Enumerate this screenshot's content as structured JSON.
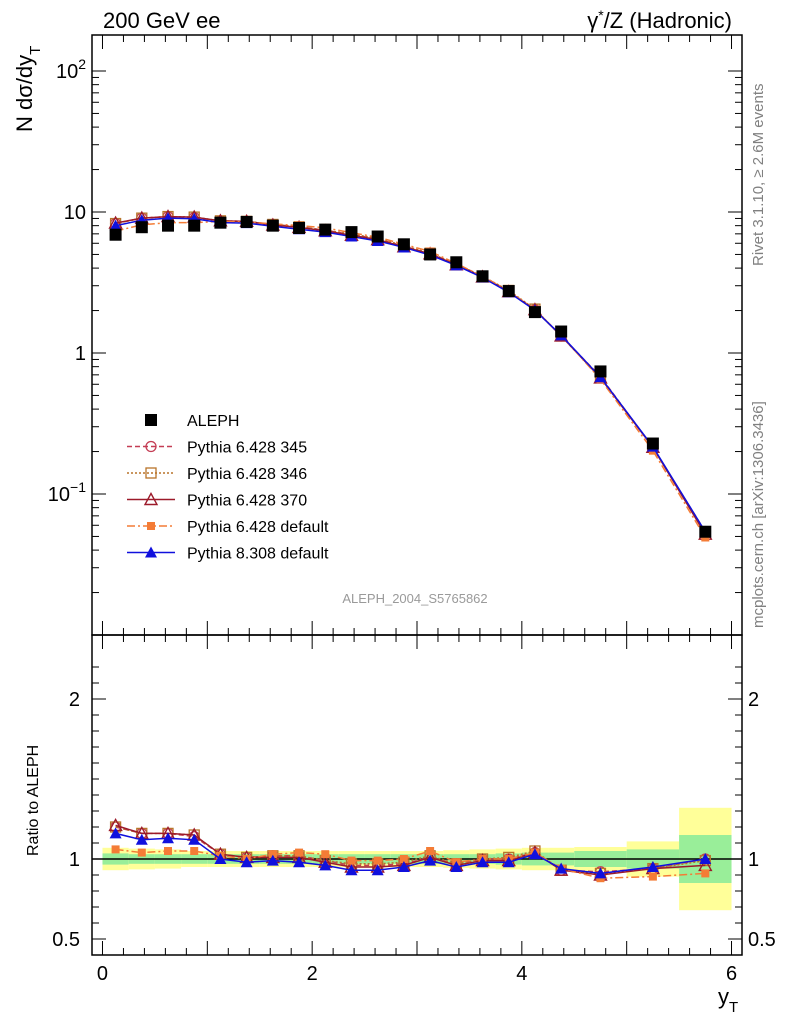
{
  "header": {
    "left": "200 GeV ee",
    "right_prefix": "γ",
    "right_star": "*",
    "right_suffix": "/Z (Hadronic)"
  },
  "side_labels": {
    "top": "Rivet 3.1.10, ≥ 2.6M events",
    "bottom": "mcplots.cern.ch [arXiv:1306.3436]"
  },
  "watermark": "ALEPH_2004_S5765862",
  "axes": {
    "main_ylabel": {
      "main": "N dσ/dy",
      "sub": "T"
    },
    "ratio_ylabel": "Ratio to ALEPH",
    "xlabel": {
      "main": "y",
      "sub": "T"
    },
    "main_yticks": [
      {
        "v": 0.1,
        "base": "10",
        "sup": "−1"
      },
      {
        "v": 1,
        "base": "1",
        "sup": ""
      },
      {
        "v": 10,
        "base": "10",
        "sup": ""
      },
      {
        "v": 100,
        "base": "10",
        "sup": "2"
      }
    ],
    "ratio_yticks": [
      {
        "v": 0.5,
        "label": "0.5"
      },
      {
        "v": 1,
        "label": "1"
      },
      {
        "v": 2,
        "label": "2"
      }
    ],
    "xticks": [
      {
        "v": 0,
        "label": "0"
      },
      {
        "v": 2,
        "label": "2"
      },
      {
        "v": 4,
        "label": "4"
      },
      {
        "v": 6,
        "label": "6"
      }
    ]
  },
  "chart_data": {
    "type": "line",
    "yscale": "log",
    "xlim": [
      -0.1,
      6.1
    ],
    "ylim": [
      0.01,
      180
    ],
    "ratio_ylim": [
      0.4,
      2.4
    ],
    "legend_position": "lower-left",
    "x": [
      0.125,
      0.375,
      0.625,
      0.875,
      1.125,
      1.375,
      1.625,
      1.875,
      2.125,
      2.375,
      2.625,
      2.875,
      3.125,
      3.375,
      3.625,
      3.875,
      4.125,
      4.375,
      4.75,
      5.25,
      5.75
    ],
    "bands": [
      {
        "x1": 0.0,
        "x2": 0.25,
        "s1": 0.035,
        "s2": 0.07
      },
      {
        "x1": 0.25,
        "x2": 0.5,
        "s1": 0.03,
        "s2": 0.065
      },
      {
        "x1": 0.5,
        "x2": 0.75,
        "s1": 0.03,
        "s2": 0.06
      },
      {
        "x1": 0.75,
        "x2": 1.0,
        "s1": 0.03,
        "s2": 0.05
      },
      {
        "x1": 1.0,
        "x2": 1.25,
        "s1": 0.03,
        "s2": 0.05
      },
      {
        "x1": 1.25,
        "x2": 1.5,
        "s1": 0.03,
        "s2": 0.05
      },
      {
        "x1": 1.5,
        "x2": 1.75,
        "s1": 0.03,
        "s2": 0.05
      },
      {
        "x1": 1.75,
        "x2": 2.0,
        "s1": 0.03,
        "s2": 0.05
      },
      {
        "x1": 2.0,
        "x2": 2.25,
        "s1": 0.03,
        "s2": 0.05
      },
      {
        "x1": 2.25,
        "x2": 2.5,
        "s1": 0.03,
        "s2": 0.05
      },
      {
        "x1": 2.5,
        "x2": 2.75,
        "s1": 0.03,
        "s2": 0.05
      },
      {
        "x1": 2.75,
        "x2": 3.0,
        "s1": 0.03,
        "s2": 0.05
      },
      {
        "x1": 3.0,
        "x2": 3.25,
        "s1": 0.03,
        "s2": 0.05
      },
      {
        "x1": 3.25,
        "x2": 3.5,
        "s1": 0.03,
        "s2": 0.055
      },
      {
        "x1": 3.5,
        "x2": 3.75,
        "s1": 0.03,
        "s2": 0.06
      },
      {
        "x1": 3.75,
        "x2": 4.0,
        "s1": 0.035,
        "s2": 0.065
      },
      {
        "x1": 4.0,
        "x2": 4.25,
        "s1": 0.04,
        "s2": 0.07
      },
      {
        "x1": 4.25,
        "x2": 4.5,
        "s1": 0.04,
        "s2": 0.07
      },
      {
        "x1": 4.5,
        "x2": 5.0,
        "s1": 0.05,
        "s2": 0.075
      },
      {
        "x1": 5.0,
        "x2": 5.5,
        "s1": 0.06,
        "s2": 0.11
      },
      {
        "x1": 5.5,
        "x2": 6.0,
        "s1": 0.15,
        "s2": 0.32
      }
    ],
    "series": [
      {
        "name": "ALEPH",
        "kind": "data",
        "color": "#000000",
        "marker": "square-filled",
        "values": [
          6.9,
          7.8,
          8.0,
          8.0,
          8.4,
          8.5,
          8.0,
          7.7,
          7.5,
          7.2,
          6.7,
          5.9,
          5.0,
          4.4,
          3.5,
          2.75,
          1.95,
          1.42,
          0.74,
          0.228,
          0.054
        ]
      },
      {
        "name": "Pythia 6.428 345",
        "kind": "mc",
        "color": "#c43d54",
        "marker": "circle-open",
        "dash": "5,3",
        "ratios": [
          1.2,
          1.16,
          1.16,
          1.14,
          1.03,
          1.01,
          1.02,
          1.02,
          0.99,
          0.96,
          0.96,
          0.97,
          1.01,
          0.97,
          1.0,
          1.0,
          1.04,
          0.93,
          0.92,
          0.94,
          1.0
        ]
      },
      {
        "name": "Pythia 6.428 346",
        "kind": "mc",
        "color": "#b8742a",
        "marker": "square-open",
        "dash": "2,2",
        "ratios": [
          1.2,
          1.16,
          1.16,
          1.15,
          1.03,
          1.01,
          1.02,
          1.02,
          0.99,
          0.97,
          0.97,
          0.98,
          1.02,
          0.97,
          1.0,
          1.01,
          1.05,
          0.93,
          0.91,
          0.94,
          0.99
        ]
      },
      {
        "name": "Pythia 6.428 370",
        "kind": "mc",
        "color": "#9c1a2a",
        "marker": "triangle-open",
        "dash": "",
        "ratios": [
          1.21,
          1.16,
          1.16,
          1.15,
          1.03,
          1.01,
          1.01,
          1.01,
          0.98,
          0.95,
          0.95,
          0.96,
          1.01,
          0.96,
          0.99,
          0.99,
          1.04,
          0.93,
          0.9,
          0.94,
          0.96
        ]
      },
      {
        "name": "Pythia 6.428 default",
        "kind": "mc",
        "color": "#f47c36",
        "marker": "square-small",
        "dash": "8,3,2,3",
        "ratios": [
          1.06,
          1.04,
          1.05,
          1.05,
          1.02,
          1.0,
          1.03,
          1.04,
          1.03,
          0.99,
          0.99,
          1.0,
          1.05,
          0.98,
          1.0,
          1.0,
          1.04,
          0.94,
          0.88,
          0.89,
          0.91
        ]
      },
      {
        "name": "Pythia 8.308 default",
        "kind": "mc",
        "color": "#1010dd",
        "marker": "triangle-filled",
        "dash": "",
        "ratios": [
          1.16,
          1.12,
          1.13,
          1.12,
          1.0,
          0.98,
          0.99,
          0.98,
          0.96,
          0.93,
          0.93,
          0.95,
          0.99,
          0.95,
          0.98,
          0.98,
          1.03,
          0.94,
          0.91,
          0.95,
          1.0
        ]
      }
    ]
  }
}
